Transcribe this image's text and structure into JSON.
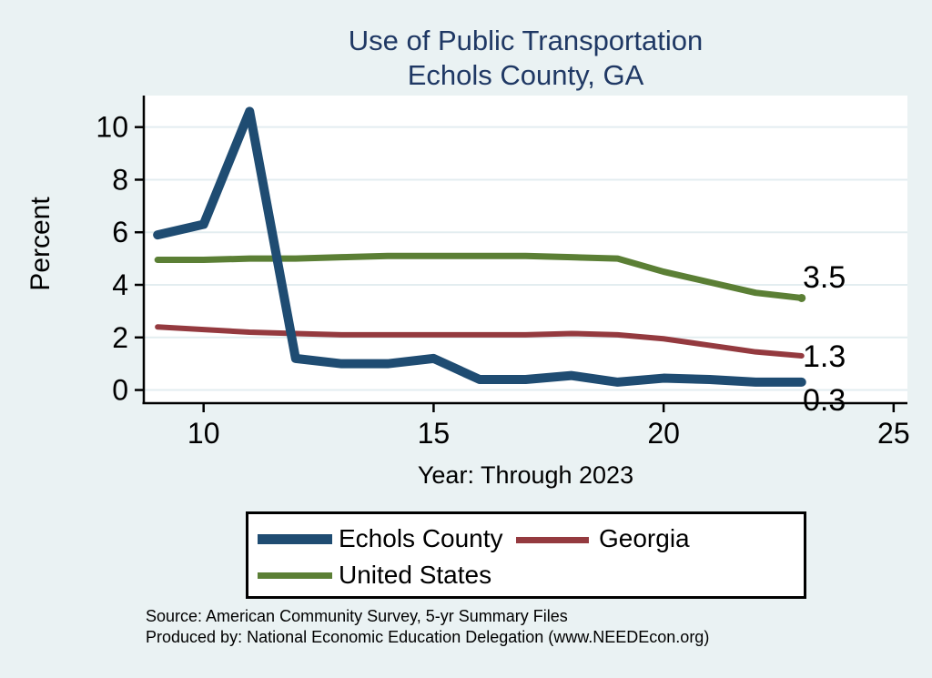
{
  "title": {
    "line1": "Use of Public Transportation",
    "line2": "Echols County, GA"
  },
  "chart_data": {
    "type": "line",
    "title": "Use of Public Transportation — Echols County, GA",
    "x": [
      9,
      10,
      11,
      12,
      13,
      14,
      15,
      16,
      17,
      18,
      19,
      20,
      21,
      22,
      23
    ],
    "x_axis": {
      "label": "Year: Through 2023",
      "ticks": [
        10,
        15,
        20,
        25
      ],
      "range": [
        8.7,
        25.3
      ]
    },
    "y_axis": {
      "label": "Percent",
      "ticks": [
        0,
        2,
        4,
        6,
        8,
        10
      ],
      "range": [
        -0.5,
        11.2
      ]
    },
    "grid": "horizontal",
    "grid_color": "#e3edf0",
    "plot_background": "#ffffff",
    "page_background": "#eaf2f3",
    "legend_position": "bottom",
    "series": [
      {
        "name": "Echols County",
        "color": "#1f4c72",
        "stroke_width": 10,
        "end_label": "0.3",
        "end_marker": false,
        "values": [
          5.9,
          6.3,
          10.6,
          1.2,
          1.0,
          1.0,
          1.2,
          0.4,
          0.4,
          0.55,
          0.3,
          0.45,
          0.4,
          0.3,
          0.3
        ]
      },
      {
        "name": "Georgia",
        "color": "#943a3f",
        "stroke_width": 6,
        "end_label": "1.3",
        "end_marker": false,
        "values": [
          2.4,
          2.3,
          2.2,
          2.15,
          2.1,
          2.1,
          2.1,
          2.1,
          2.1,
          2.15,
          2.1,
          1.95,
          1.7,
          1.45,
          1.3
        ]
      },
      {
        "name": "United States",
        "color": "#5b7f35",
        "stroke_width": 7,
        "end_label": "3.5",
        "end_marker": true,
        "values": [
          4.95,
          4.95,
          5.0,
          5.0,
          5.05,
          5.1,
          5.1,
          5.1,
          5.1,
          5.05,
          5.0,
          4.5,
          4.1,
          3.7,
          3.5
        ]
      }
    ]
  },
  "footer": {
    "source": "Source: American Community Survey, 5-yr Summary Files",
    "produced_by": "Produced by: National Economic Education Delegation (www.NEEDEcon.org)"
  },
  "colors": {
    "title_text": "#1f3864",
    "axis": "#000000"
  }
}
